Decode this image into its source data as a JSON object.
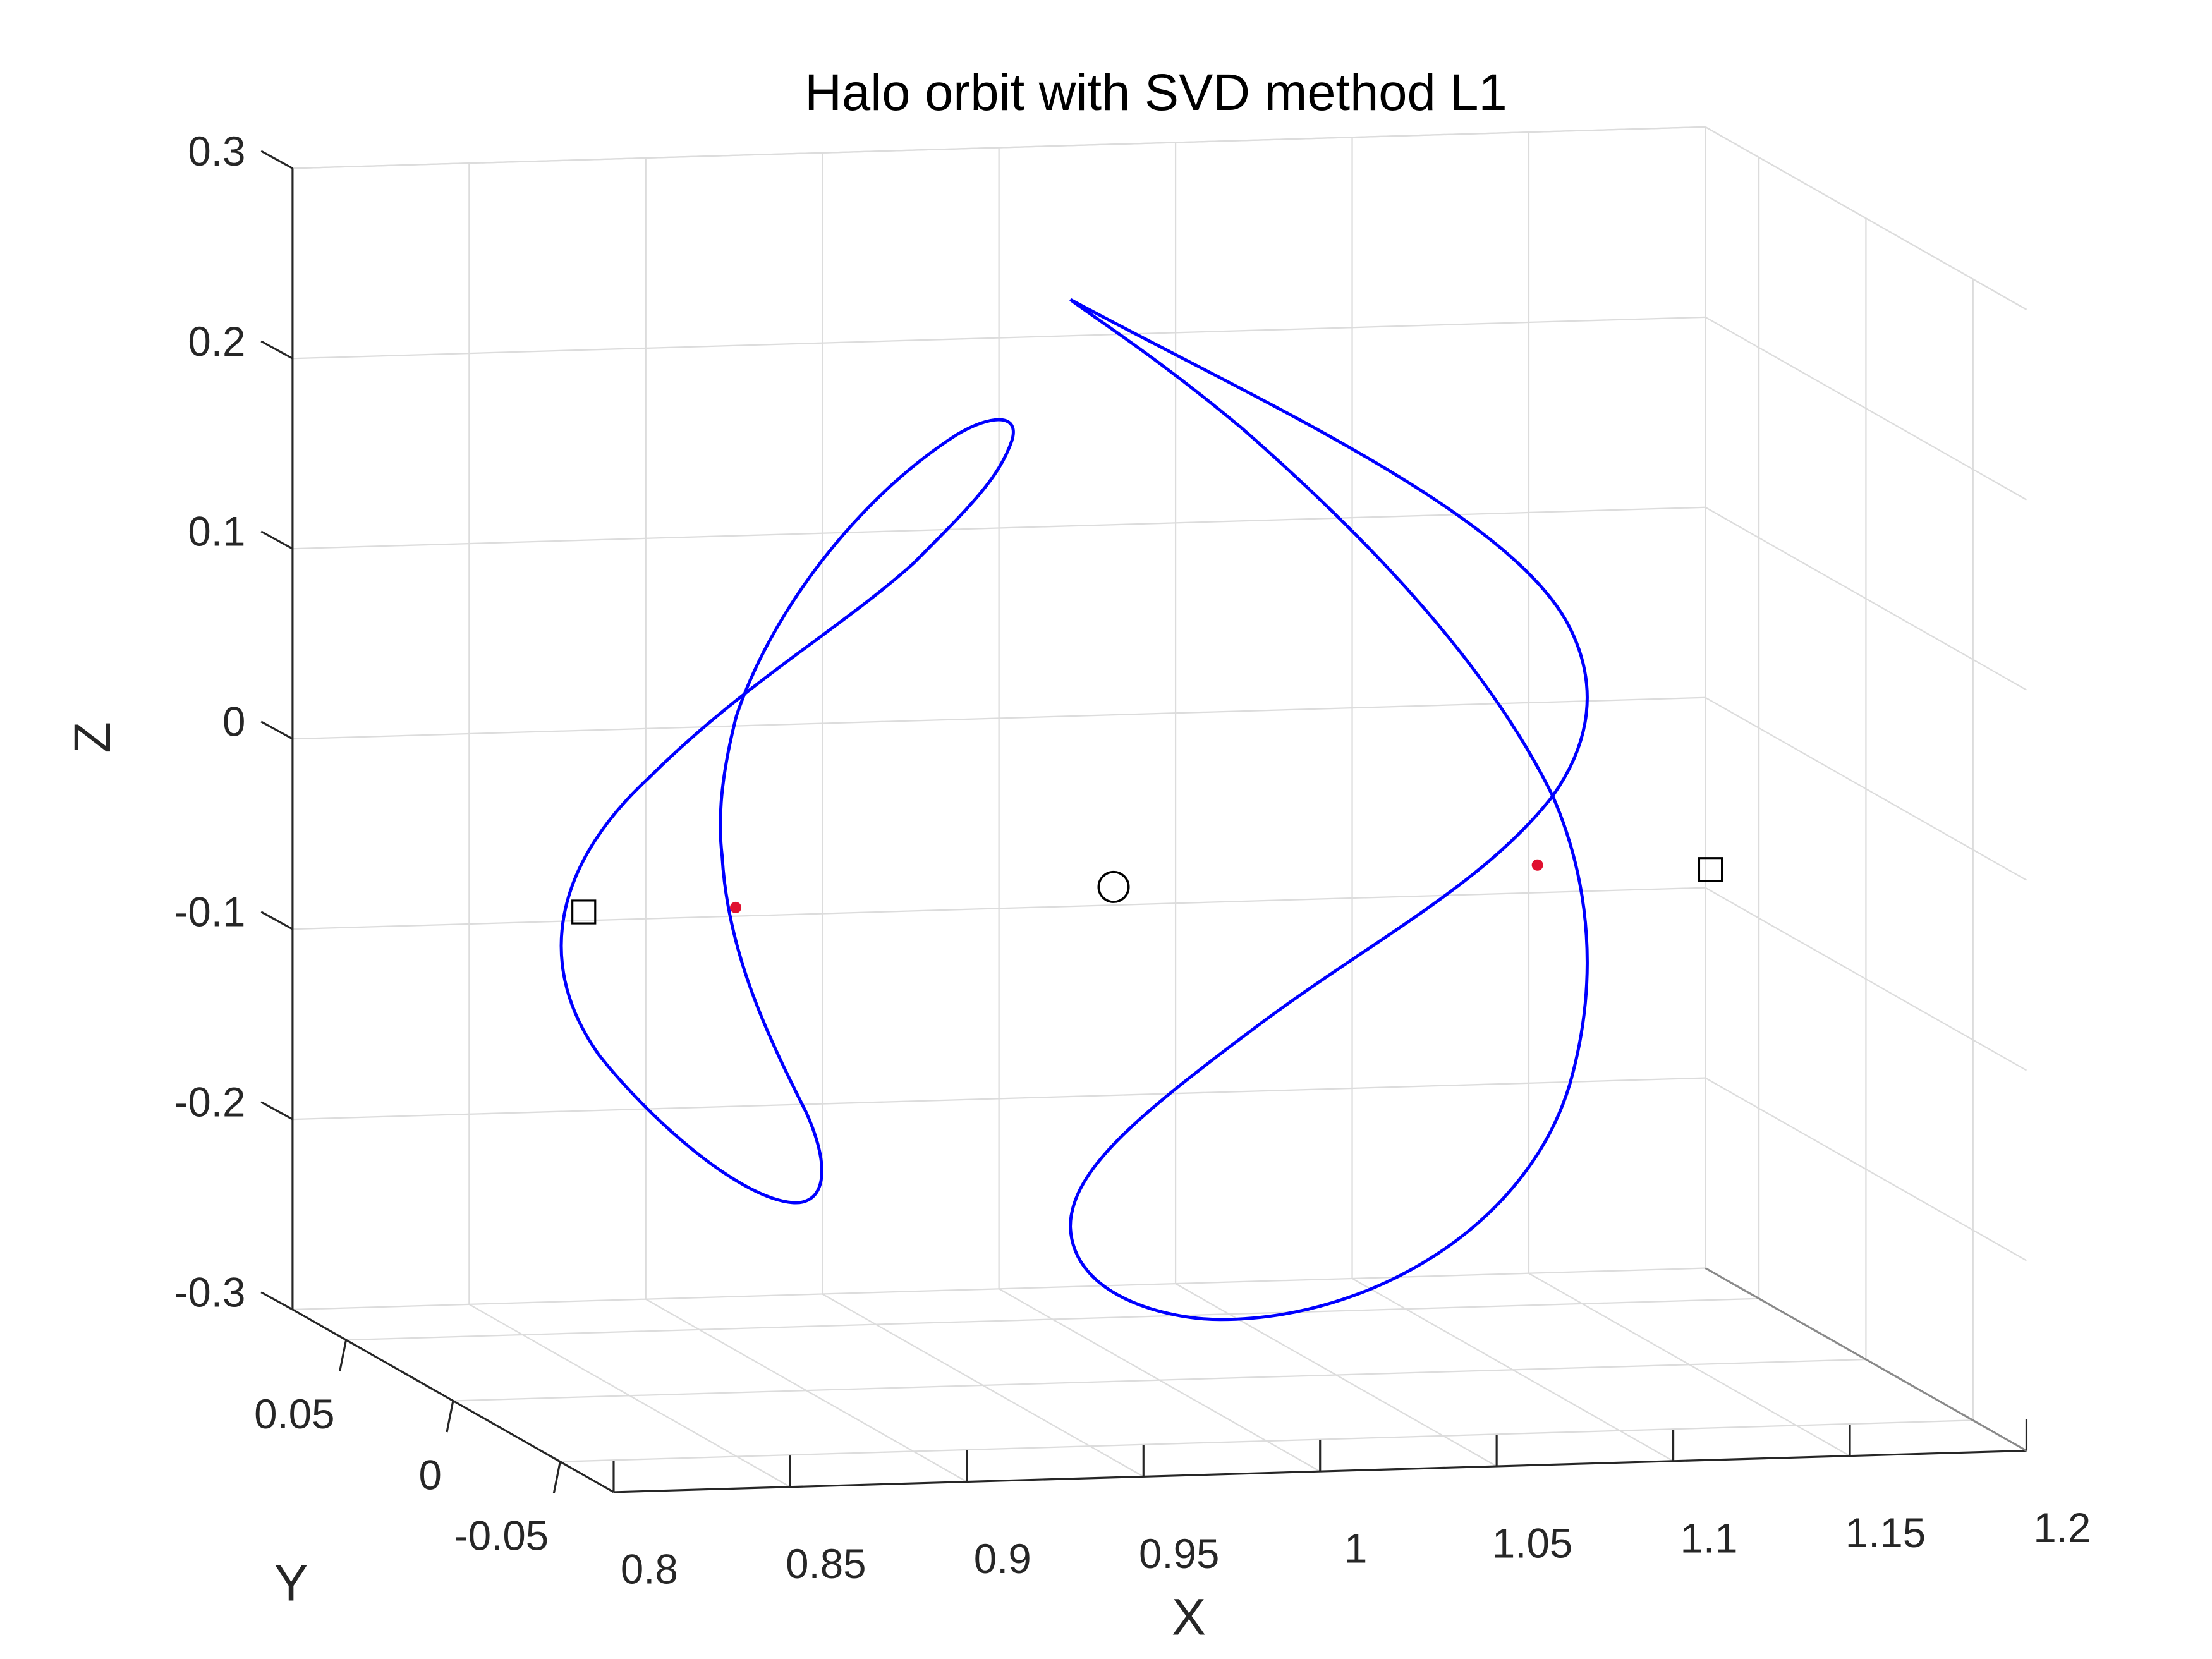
{
  "chart_data": {
    "type": "line",
    "projection": "3d",
    "title": "Halo orbit with SVD method L1",
    "xlabel": "X",
    "ylabel": "Y",
    "zlabel": "Z",
    "xlim": [
      0.8,
      1.2
    ],
    "ylim": [
      -0.075,
      0.075
    ],
    "zlim": [
      -0.3,
      0.3
    ],
    "x_ticks": [
      "0.8",
      "0.85",
      "0.9",
      "0.95",
      "1",
      "1.05",
      "1.1",
      "1.15",
      "1.2"
    ],
    "y_ticks": [
      "-0.05",
      "0",
      "0.05"
    ],
    "z_ticks": [
      "-0.3",
      "-0.2",
      "-0.1",
      "0",
      "0.1",
      "0.2",
      "0.3"
    ],
    "grid": true,
    "series": [
      {
        "kind": "orbit",
        "color": "#0000ff",
        "description": "two symmetric halo orbit loops"
      }
    ],
    "markers": [
      {
        "kind": "circle",
        "color": "#000000",
        "x": 0.987,
        "y": 0.0,
        "z": -0.04
      },
      {
        "kind": "square",
        "color": "#000000",
        "x": 0.837,
        "y": 0.0,
        "z": -0.045
      },
      {
        "kind": "square",
        "color": "#000000",
        "x": 1.156,
        "y": 0.0,
        "z": -0.04
      },
      {
        "kind": "point",
        "color": "#e0102f",
        "x": 0.88,
        "y": 0.0,
        "z": -0.045
      },
      {
        "kind": "point",
        "color": "#e0102f",
        "x": 1.107,
        "y": 0.0,
        "z": -0.035
      }
    ]
  }
}
